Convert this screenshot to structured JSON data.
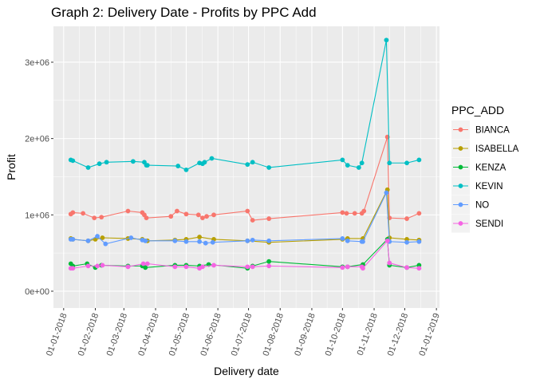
{
  "chart_data": {
    "type": "line",
    "title": "Graph 2: Delivery Date - Profits by PPC Add",
    "xlabel": "Delivery date",
    "ylabel": "Profit",
    "x_is_date": true,
    "xlim": [
      "2017-12-22",
      "2019-01-04"
    ],
    "ylim": [
      -220000,
      3470000
    ],
    "x_ticks": [
      {
        "value": "2018-01-01",
        "label": "01-01-2018"
      },
      {
        "value": "2018-02-01",
        "label": "01-02-2018"
      },
      {
        "value": "2018-03-01",
        "label": "01-03-2018"
      },
      {
        "value": "2018-04-01",
        "label": "01-04-2018"
      },
      {
        "value": "2018-05-01",
        "label": "01-05-2018"
      },
      {
        "value": "2018-06-01",
        "label": "01-06-2018"
      },
      {
        "value": "2018-07-01",
        "label": "01-07-2018"
      },
      {
        "value": "2018-08-01",
        "label": "01-08-2018"
      },
      {
        "value": "2018-09-01",
        "label": "01-09-2018"
      },
      {
        "value": "2018-10-01",
        "label": "01-10-2018"
      },
      {
        "value": "2018-11-01",
        "label": "01-11-2018"
      },
      {
        "value": "2018-12-01",
        "label": "01-12-2018"
      },
      {
        "value": "2019-01-01",
        "label": "01-01-2019"
      }
    ],
    "y_ticks": [
      {
        "value": 0,
        "label": "0e+00"
      },
      {
        "value": 1000000,
        "label": "1e+06"
      },
      {
        "value": 2000000,
        "label": "2e+06"
      },
      {
        "value": 3000000,
        "label": "3e+06"
      }
    ],
    "grid": true,
    "legend": {
      "title": "PPC_ADD",
      "position": "right"
    },
    "series": [
      {
        "name": "BIANCA",
        "color": "#F8766D",
        "points": [
          [
            "2018-01-08",
            1010000
          ],
          [
            "2018-01-10",
            1030000
          ],
          [
            "2018-01-20",
            1020000
          ],
          [
            "2018-01-31",
            960000
          ],
          [
            "2018-02-07",
            970000
          ],
          [
            "2018-03-05",
            1050000
          ],
          [
            "2018-03-19",
            1030000
          ],
          [
            "2018-03-21",
            1000000
          ],
          [
            "2018-03-23",
            960000
          ],
          [
            "2018-04-16",
            980000
          ],
          [
            "2018-04-22",
            1050000
          ],
          [
            "2018-05-01",
            1010000
          ],
          [
            "2018-05-13",
            1000000
          ],
          [
            "2018-05-17",
            960000
          ],
          [
            "2018-05-21",
            980000
          ],
          [
            "2018-05-28",
            1000000
          ],
          [
            "2018-06-30",
            1050000
          ],
          [
            "2018-07-05",
            930000
          ],
          [
            "2018-07-21",
            950000
          ],
          [
            "2018-10-01",
            1030000
          ],
          [
            "2018-10-05",
            1020000
          ],
          [
            "2018-10-13",
            1020000
          ],
          [
            "2018-10-20",
            1020000
          ],
          [
            "2018-10-22",
            1050000
          ],
          [
            "2018-11-14",
            2020000
          ],
          [
            "2018-11-16",
            960000
          ],
          [
            "2018-12-03",
            950000
          ],
          [
            "2018-12-15",
            1020000
          ]
        ]
      },
      {
        "name": "ISABELLA",
        "color": "#B79F00",
        "points": [
          [
            "2018-01-08",
            690000
          ],
          [
            "2018-01-10",
            680000
          ],
          [
            "2018-01-25",
            660000
          ],
          [
            "2018-02-01",
            680000
          ],
          [
            "2018-02-08",
            700000
          ],
          [
            "2018-03-05",
            690000
          ],
          [
            "2018-03-19",
            680000
          ],
          [
            "2018-03-24",
            660000
          ],
          [
            "2018-04-20",
            670000
          ],
          [
            "2018-05-01",
            680000
          ],
          [
            "2018-05-14",
            710000
          ],
          [
            "2018-05-28",
            680000
          ],
          [
            "2018-06-30",
            660000
          ],
          [
            "2018-07-21",
            640000
          ],
          [
            "2018-10-01",
            680000
          ],
          [
            "2018-10-06",
            690000
          ],
          [
            "2018-10-21",
            690000
          ],
          [
            "2018-11-14",
            1330000
          ],
          [
            "2018-11-16",
            700000
          ],
          [
            "2018-12-03",
            680000
          ],
          [
            "2018-12-15",
            670000
          ]
        ]
      },
      {
        "name": "KENZA",
        "color": "#00BA38",
        "points": [
          [
            "2018-01-08",
            360000
          ],
          [
            "2018-01-10",
            330000
          ],
          [
            "2018-01-24",
            360000
          ],
          [
            "2018-02-01",
            310000
          ],
          [
            "2018-02-07",
            340000
          ],
          [
            "2018-03-05",
            330000
          ],
          [
            "2018-03-19",
            330000
          ],
          [
            "2018-03-22",
            310000
          ],
          [
            "2018-04-20",
            340000
          ],
          [
            "2018-05-01",
            340000
          ],
          [
            "2018-05-14",
            330000
          ],
          [
            "2018-05-23",
            350000
          ],
          [
            "2018-06-30",
            300000
          ],
          [
            "2018-07-05",
            330000
          ],
          [
            "2018-07-21",
            390000
          ],
          [
            "2018-10-01",
            320000
          ],
          [
            "2018-10-06",
            320000
          ],
          [
            "2018-10-21",
            350000
          ],
          [
            "2018-11-14",
            680000
          ],
          [
            "2018-11-16",
            340000
          ],
          [
            "2018-12-03",
            310000
          ],
          [
            "2018-12-15",
            340000
          ]
        ]
      },
      {
        "name": "KEVIN",
        "color": "#00BFC4",
        "points": [
          [
            "2018-01-08",
            1720000
          ],
          [
            "2018-01-10",
            1710000
          ],
          [
            "2018-01-25",
            1620000
          ],
          [
            "2018-02-05",
            1670000
          ],
          [
            "2018-02-12",
            1690000
          ],
          [
            "2018-03-10",
            1700000
          ],
          [
            "2018-03-21",
            1690000
          ],
          [
            "2018-03-23",
            1650000
          ],
          [
            "2018-03-24",
            1650000
          ],
          [
            "2018-04-23",
            1640000
          ],
          [
            "2018-05-01",
            1590000
          ],
          [
            "2018-05-14",
            1680000
          ],
          [
            "2018-05-17",
            1670000
          ],
          [
            "2018-05-19",
            1690000
          ],
          [
            "2018-05-26",
            1740000
          ],
          [
            "2018-06-30",
            1660000
          ],
          [
            "2018-07-05",
            1690000
          ],
          [
            "2018-07-21",
            1620000
          ],
          [
            "2018-10-01",
            1720000
          ],
          [
            "2018-10-06",
            1650000
          ],
          [
            "2018-10-17",
            1620000
          ],
          [
            "2018-10-20",
            1680000
          ],
          [
            "2018-11-13",
            3290000
          ],
          [
            "2018-11-16",
            1680000
          ],
          [
            "2018-12-03",
            1680000
          ],
          [
            "2018-12-15",
            1720000
          ]
        ]
      },
      {
        "name": "NO",
        "color": "#619CFF",
        "points": [
          [
            "2018-01-08",
            680000
          ],
          [
            "2018-01-10",
            680000
          ],
          [
            "2018-01-25",
            660000
          ],
          [
            "2018-02-03",
            720000
          ],
          [
            "2018-02-11",
            620000
          ],
          [
            "2018-03-08",
            700000
          ],
          [
            "2018-03-19",
            670000
          ],
          [
            "2018-03-22",
            660000
          ],
          [
            "2018-04-20",
            660000
          ],
          [
            "2018-05-01",
            650000
          ],
          [
            "2018-05-14",
            650000
          ],
          [
            "2018-05-20",
            630000
          ],
          [
            "2018-05-27",
            640000
          ],
          [
            "2018-06-30",
            660000
          ],
          [
            "2018-07-05",
            670000
          ],
          [
            "2018-07-21",
            660000
          ],
          [
            "2018-10-01",
            690000
          ],
          [
            "2018-10-06",
            660000
          ],
          [
            "2018-10-20",
            650000
          ],
          [
            "2018-10-21",
            650000
          ],
          [
            "2018-11-13",
            1290000
          ],
          [
            "2018-11-16",
            650000
          ],
          [
            "2018-12-03",
            640000
          ],
          [
            "2018-12-15",
            650000
          ]
        ]
      },
      {
        "name": "SENDI",
        "color": "#F564E3",
        "points": [
          [
            "2018-01-08",
            300000
          ],
          [
            "2018-01-10",
            300000
          ],
          [
            "2018-01-25",
            330000
          ],
          [
            "2018-02-03",
            330000
          ],
          [
            "2018-02-08",
            340000
          ],
          [
            "2018-03-05",
            320000
          ],
          [
            "2018-03-20",
            360000
          ],
          [
            "2018-03-24",
            360000
          ],
          [
            "2018-04-20",
            320000
          ],
          [
            "2018-05-01",
            320000
          ],
          [
            "2018-05-14",
            300000
          ],
          [
            "2018-05-17",
            320000
          ],
          [
            "2018-05-28",
            340000
          ],
          [
            "2018-06-30",
            320000
          ],
          [
            "2018-07-05",
            320000
          ],
          [
            "2018-07-21",
            330000
          ],
          [
            "2018-10-01",
            310000
          ],
          [
            "2018-10-06",
            320000
          ],
          [
            "2018-10-20",
            320000
          ],
          [
            "2018-10-21",
            300000
          ],
          [
            "2018-11-14",
            660000
          ],
          [
            "2018-11-16",
            370000
          ],
          [
            "2018-12-03",
            310000
          ],
          [
            "2018-12-15",
            300000
          ]
        ]
      }
    ]
  }
}
